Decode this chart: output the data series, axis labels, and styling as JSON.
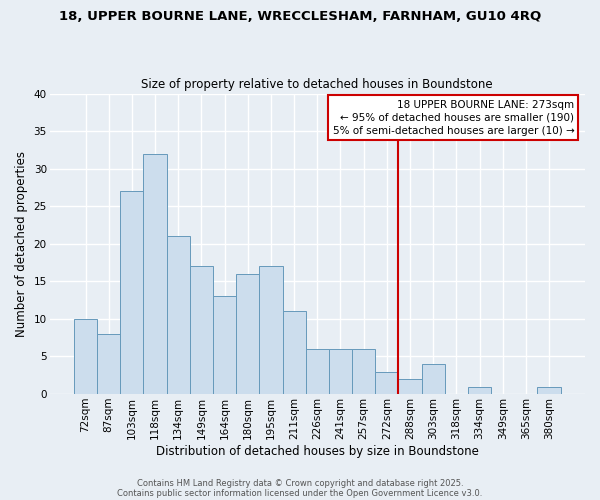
{
  "title_line1": "18, UPPER BOURNE LANE, WRECCLESHAM, FARNHAM, GU10 4RQ",
  "title_line2": "Size of property relative to detached houses in Boundstone",
  "xlabel": "Distribution of detached houses by size in Boundstone",
  "ylabel": "Number of detached properties",
  "bar_labels": [
    "72sqm",
    "87sqm",
    "103sqm",
    "118sqm",
    "134sqm",
    "149sqm",
    "164sqm",
    "180sqm",
    "195sqm",
    "211sqm",
    "226sqm",
    "241sqm",
    "257sqm",
    "272sqm",
    "288sqm",
    "303sqm",
    "318sqm",
    "334sqm",
    "349sqm",
    "365sqm",
    "380sqm"
  ],
  "bar_values": [
    10,
    8,
    27,
    32,
    21,
    17,
    13,
    16,
    17,
    11,
    6,
    6,
    6,
    3,
    2,
    4,
    0,
    1,
    0,
    0,
    1
  ],
  "bar_color": "#ccdded",
  "bar_edge_color": "#6699bb",
  "vline_idx": 13,
  "vline_color": "#cc0000",
  "ylim": [
    0,
    40
  ],
  "yticks": [
    0,
    5,
    10,
    15,
    20,
    25,
    30,
    35,
    40
  ],
  "annotation_title": "18 UPPER BOURNE LANE: 273sqm",
  "annotation_line1": "← 95% of detached houses are smaller (190)",
  "annotation_line2": "5% of semi-detached houses are larger (10) →",
  "annotation_box_facecolor": "#ffffff",
  "annotation_box_edgecolor": "#cc0000",
  "footnote1": "Contains HM Land Registry data © Crown copyright and database right 2025.",
  "footnote2": "Contains public sector information licensed under the Open Government Licence v3.0.",
  "bg_color": "#e8eef4",
  "grid_color": "#ffffff",
  "title1_fontsize": 9.5,
  "title2_fontsize": 8.5,
  "axis_label_fontsize": 8.5,
  "tick_fontsize": 7.5,
  "annotation_fontsize": 7.5,
  "footnote_fontsize": 6.0
}
